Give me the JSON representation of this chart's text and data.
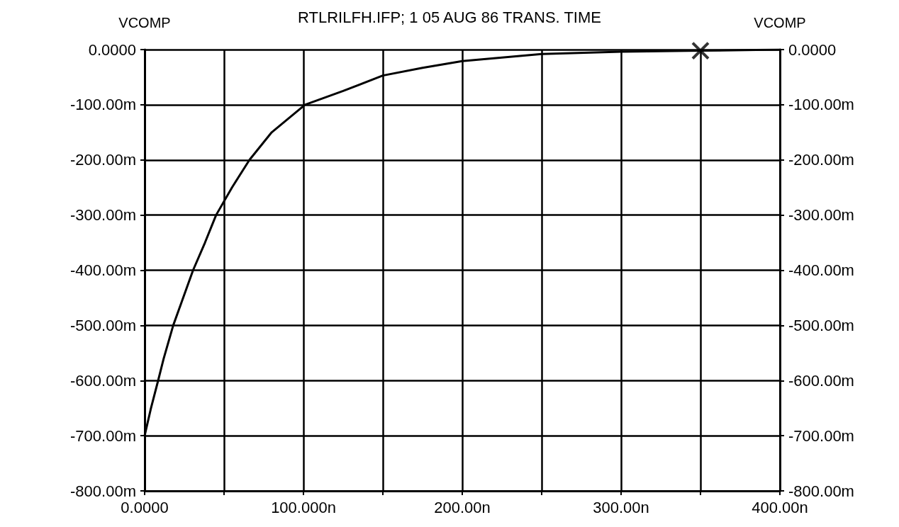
{
  "chart_data": {
    "type": "line",
    "title": "RTLRILFH.IFP; 1 05 AUG 86 TRANS. TIME",
    "ylabel": "VCOMP",
    "y2label": "VCOMP",
    "xlim": [
      0,
      400
    ],
    "xticks": [
      {
        "value": 0,
        "label": "0.0000"
      },
      {
        "value": 50,
        "label": null
      },
      {
        "value": 100,
        "label": "100.000n"
      },
      {
        "value": 150,
        "label": null
      },
      {
        "value": 200,
        "label": "200.00n"
      },
      {
        "value": 250,
        "label": null
      },
      {
        "value": 300,
        "label": "300.00n"
      },
      {
        "value": 350,
        "label": null
      },
      {
        "value": 400,
        "label": "400.00n"
      }
    ],
    "ylim": [
      -800,
      0
    ],
    "yticks": [
      {
        "value": -800,
        "label": "-800.00m"
      },
      {
        "value": -700,
        "label": "-700.00m"
      },
      {
        "value": -600,
        "label": "-600.00m"
      },
      {
        "value": -500,
        "label": "-500.00m"
      },
      {
        "value": -400,
        "label": "-400.00m"
      },
      {
        "value": -300,
        "label": "-300.00m"
      },
      {
        "value": -200,
        "label": "-200.00m"
      },
      {
        "value": -100,
        "label": "-100.00m"
      },
      {
        "value": 0,
        "label": "0.0000"
      }
    ],
    "y2lim": [
      -800,
      0
    ],
    "y2ticks": [
      {
        "value": -800,
        "label": "-800.00m"
      },
      {
        "value": -700,
        "label": "-700.00m"
      },
      {
        "value": -600,
        "label": "-600.00m"
      },
      {
        "value": -500,
        "label": "-500.00m"
      },
      {
        "value": -400,
        "label": "-400.00m"
      },
      {
        "value": -300,
        "label": "-300.00m"
      },
      {
        "value": -200,
        "label": "-200.00m"
      },
      {
        "value": -100,
        "label": "-100.00m"
      },
      {
        "value": 0,
        "label": "0.0000"
      }
    ],
    "grid": true,
    "series": [
      {
        "color": "#000000",
        "marker": "none",
        "line_style": "solid",
        "x": [
          0,
          4,
          8.5,
          12,
          18,
          23,
          30.5,
          38,
          45,
          55,
          66,
          80,
          101,
          125,
          150,
          175,
          200,
          250,
          300,
          350,
          400
        ],
        "values": [
          -700,
          -650,
          -600,
          -560,
          -500,
          -460,
          -400,
          -350,
          -300,
          -250,
          -200,
          -150,
          -100,
          -75,
          -47,
          -33,
          -21,
          -8,
          -4,
          -2,
          0
        ]
      },
      {
        "type": "scatter",
        "color": "#000000",
        "marker": "cross",
        "x": [
          350
        ],
        "values": [
          -2
        ]
      }
    ]
  }
}
